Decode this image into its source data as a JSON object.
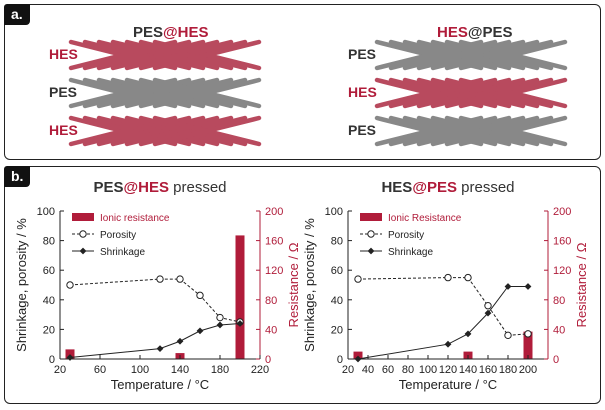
{
  "panel_a": {
    "label": "a.",
    "left": {
      "title_part1": "PES",
      "title_part2": "@HES",
      "layers": [
        "HES",
        "PES",
        "HES"
      ]
    },
    "right": {
      "title_part1": "HES",
      "title_part2": "@PES",
      "layers": [
        "PES",
        "HES",
        "PES"
      ]
    }
  },
  "panel_b": {
    "label": "b."
  },
  "colors": {
    "red": "#b01c3a",
    "gray": "#888888",
    "dark": "#333333",
    "hes_fiber": "#b84a5e"
  },
  "chart_data": [
    {
      "type": "line",
      "title_part1": "PES",
      "title_part2": "@HES",
      "title_part3": " pressed",
      "xlabel": "Temperature / °C",
      "ylabel": "Shrinkage, porosity / %",
      "y2label": "Resistance / Ω",
      "xlim": [
        20,
        220
      ],
      "ylim": [
        0,
        100
      ],
      "y2lim": [
        0,
        200
      ],
      "xticks": [
        20,
        60,
        100,
        140,
        180,
        220
      ],
      "yticks": [
        0,
        20,
        40,
        60,
        80,
        100
      ],
      "y2ticks": [
        0,
        40,
        80,
        120,
        160,
        200
      ],
      "legend": [
        "Ionic resistance",
        "Porosity",
        "Shrinkage"
      ],
      "bars": {
        "x": [
          30,
          140,
          200
        ],
        "values": [
          13,
          8,
          167
        ]
      },
      "porosity": {
        "x": [
          30,
          120,
          140,
          160,
          180,
          200
        ],
        "values": [
          50,
          54,
          54,
          43,
          28,
          25
        ]
      },
      "shrinkage": {
        "x": [
          30,
          120,
          140,
          160,
          180,
          200
        ],
        "values": [
          1,
          7,
          12,
          19,
          23,
          24
        ]
      }
    },
    {
      "type": "line",
      "title_part1": "HES",
      "title_part2": "@PES",
      "title_part3": " pressed",
      "xlabel": "Temperature / °C",
      "ylabel": "Shrinkage, porosity / %",
      "y2label": "Resistance / Ω",
      "xlim": [
        20,
        220
      ],
      "ylim": [
        0,
        100
      ],
      "y2lim": [
        0,
        200
      ],
      "xticks": [
        20,
        40,
        60,
        80,
        100,
        120,
        140,
        160,
        180,
        200
      ],
      "yticks": [
        0,
        20,
        40,
        60,
        80,
        100
      ],
      "y2ticks": [
        0,
        40,
        80,
        120,
        160,
        200
      ],
      "legend": [
        "Ionic Resistance",
        "Porosity",
        "Shrinkage"
      ],
      "bars": {
        "x": [
          30,
          140,
          200
        ],
        "values": [
          10,
          10,
          37
        ]
      },
      "porosity": {
        "x": [
          30,
          120,
          140,
          160,
          180,
          200
        ],
        "values": [
          54,
          55,
          55,
          36,
          16,
          17
        ]
      },
      "shrinkage": {
        "x": [
          30,
          120,
          140,
          160,
          180,
          200
        ],
        "values": [
          0,
          10,
          17,
          31,
          49,
          49
        ]
      }
    }
  ]
}
